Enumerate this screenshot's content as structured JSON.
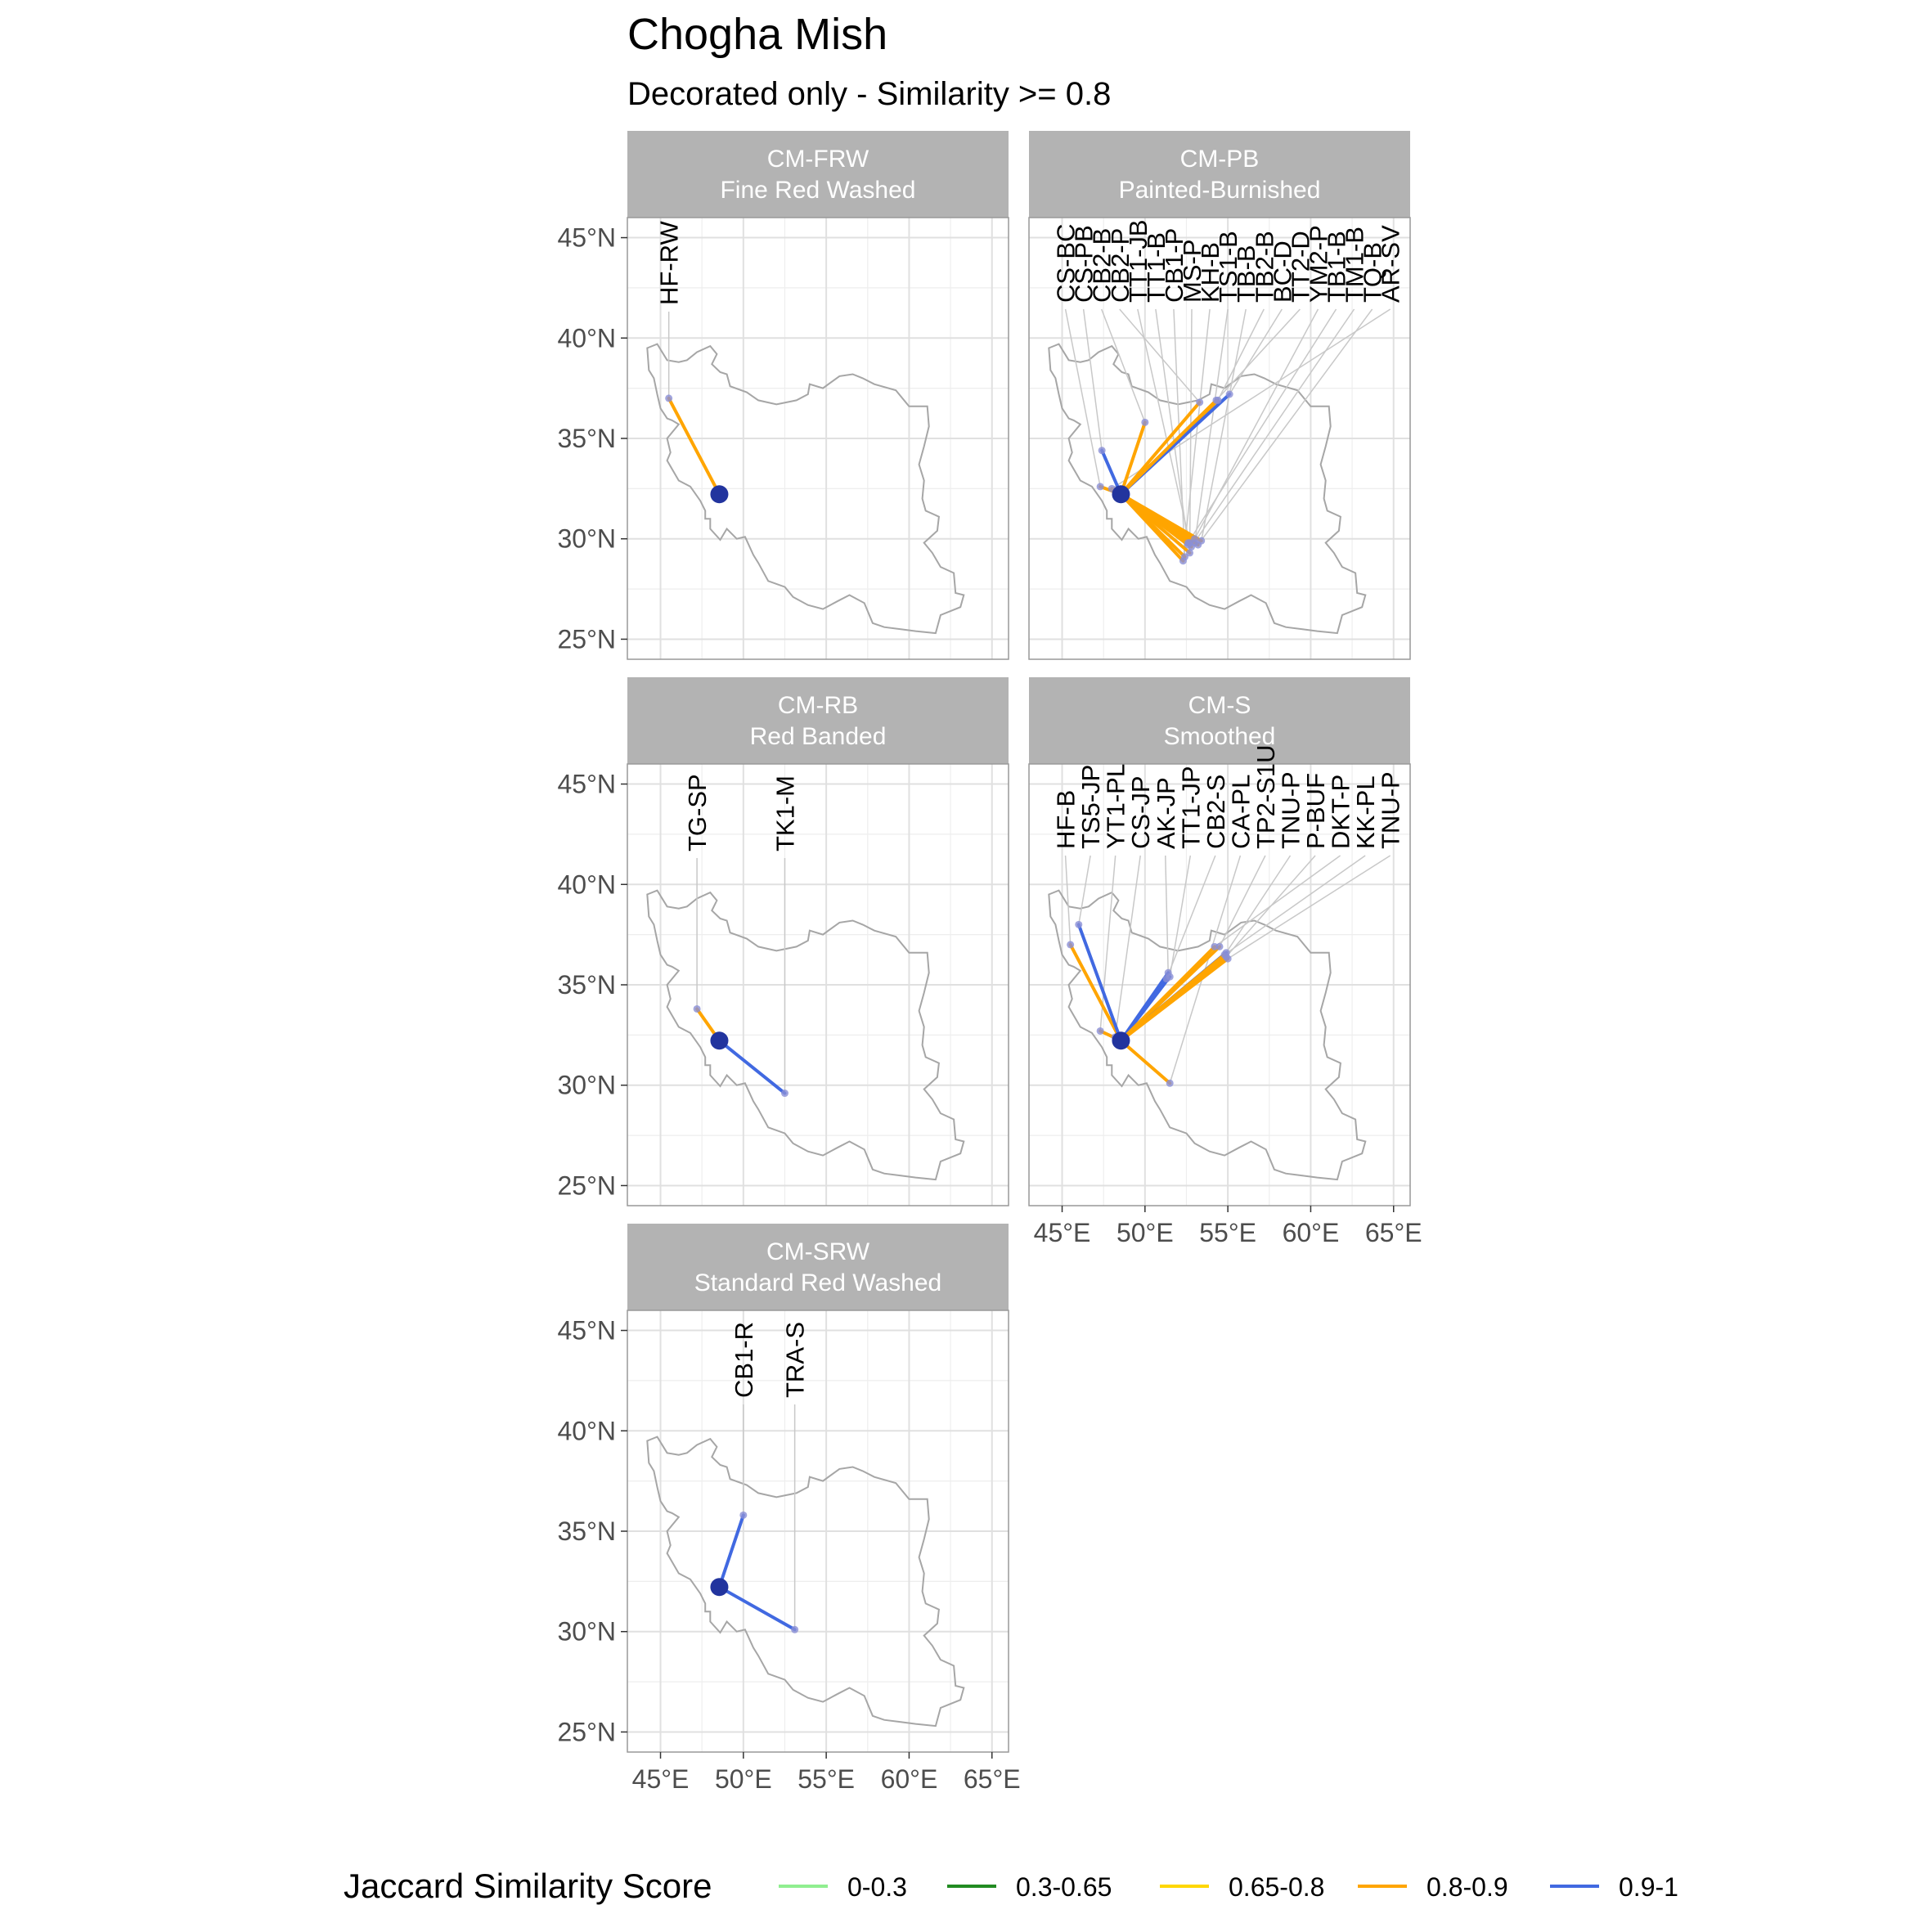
{
  "title": "Chogha Mish",
  "subtitle": "Decorated only - Similarity >= 0.8",
  "colors": {
    "0-0.3": "#90EE90",
    "0.3-0.65": "#228B22",
    "0.65-0.8": "#FFD700",
    "0.8-0.9": "#FFA500",
    "0.9-1": "#4169E1",
    "origin": "#22349E",
    "strip": "#b3b3b3",
    "grid": "#e0e0e0",
    "border": "#999999"
  },
  "legend": {
    "title": "Jaccard Similarity Score",
    "items": [
      {
        "label": "0-0.3",
        "color": "#90EE90"
      },
      {
        "label": "0.3-0.65",
        "color": "#228B22"
      },
      {
        "label": "0.65-0.8",
        "color": "#FFD700"
      },
      {
        "label": "0.8-0.9",
        "color": "#FFA500"
      },
      {
        "label": "0.9-1",
        "color": "#4169E1"
      }
    ]
  },
  "chart_data": {
    "type": "map",
    "xlim": [
      43,
      66
    ],
    "ylim": [
      24,
      46
    ],
    "x_ticks": [
      "45°E",
      "50°E",
      "55°E",
      "60°E",
      "65°E"
    ],
    "y_ticks": [
      "45°N",
      "40°N",
      "35°N",
      "30°N",
      "25°N"
    ],
    "x_tick_values": [
      45,
      50,
      55,
      60,
      65
    ],
    "y_tick_values": [
      45,
      40,
      35,
      30,
      25
    ],
    "origin": {
      "name": "Chogha Mish",
      "lon": 48.55,
      "lat": 32.22
    },
    "panels": [
      {
        "code": "CM-FRW",
        "name": "Fine Red Washed",
        "links": [
          {
            "label": "HF-RW",
            "lon": 45.5,
            "lat": 37.0,
            "bin": "0.8-0.9"
          }
        ]
      },
      {
        "code": "CM-PB",
        "name": "Painted-Burnished",
        "links": [
          {
            "label": "CS-BC",
            "lon": 47.3,
            "lat": 32.6,
            "bin": "0.8-0.9"
          },
          {
            "label": "CS-PB",
            "lon": 47.4,
            "lat": 34.4,
            "bin": "0.9-1"
          },
          {
            "label": "CB2-B",
            "lon": 50.0,
            "lat": 35.8,
            "bin": "0.8-0.9"
          },
          {
            "label": "CB2-P",
            "lon": 53.3,
            "lat": 36.8,
            "bin": "0.8-0.9"
          },
          {
            "label": "TT1-JB",
            "lon": 52.7,
            "lat": 29.8,
            "bin": "0.8-0.9"
          },
          {
            "label": "TT1-B",
            "lon": 52.6,
            "lat": 29.7,
            "bin": "0.8-0.9"
          },
          {
            "label": "CB1-P",
            "lon": 52.4,
            "lat": 29.1,
            "bin": "0.8-0.9"
          },
          {
            "label": "MS-P",
            "lon": 52.7,
            "lat": 29.3,
            "bin": "0.8-0.9"
          },
          {
            "label": "KH-B",
            "lon": 52.3,
            "lat": 28.9,
            "bin": "0.8-0.9"
          },
          {
            "label": "TS1-B",
            "lon": 53.0,
            "lat": 29.8,
            "bin": "0.8-0.9"
          },
          {
            "label": "TB-B",
            "lon": 53.4,
            "lat": 29.9,
            "bin": "0.8-0.9"
          },
          {
            "label": "TB2-B",
            "lon": 54.4,
            "lat": 36.9,
            "bin": "0.8-0.9"
          },
          {
            "label": "BC-D",
            "lon": 55.1,
            "lat": 37.2,
            "bin": "0.9-1"
          },
          {
            "label": "TT2-D",
            "lon": 54.3,
            "lat": 36.9,
            "bin": "0.8-0.9"
          },
          {
            "label": "YM2-P",
            "lon": 53.0,
            "lat": 30.0,
            "bin": "0.8-0.9"
          },
          {
            "label": "TB1-B",
            "lon": 52.6,
            "lat": 29.8,
            "bin": "0.8-0.9"
          },
          {
            "label": "TM1-B",
            "lon": 52.8,
            "lat": 29.6,
            "bin": "0.8-0.9"
          },
          {
            "label": "TQ-B",
            "lon": 53.2,
            "lat": 29.7,
            "bin": "0.8-0.9"
          },
          {
            "label": "AR-SV",
            "lon": 48.0,
            "lat": 32.5,
            "bin": "0.8-0.9"
          }
        ]
      },
      {
        "code": "CM-RB",
        "name": "Red Banded",
        "links": [
          {
            "label": "TG-SP",
            "lon": 47.2,
            "lat": 33.8,
            "bin": "0.8-0.9"
          },
          {
            "label": "TK1-M",
            "lon": 52.5,
            "lat": 29.6,
            "bin": "0.9-1"
          }
        ]
      },
      {
        "code": "CM-S",
        "name": "Smoothed",
        "links": [
          {
            "label": "HF-B",
            "lon": 45.5,
            "lat": 37.0,
            "bin": "0.8-0.9"
          },
          {
            "label": "TS5-JP",
            "lon": 46.0,
            "lat": 38.0,
            "bin": "0.9-1"
          },
          {
            "label": "YT1-PL",
            "lon": 47.3,
            "lat": 32.7,
            "bin": "0.8-0.9"
          },
          {
            "label": "CS-JP",
            "lon": 48.2,
            "lat": 32.4,
            "bin": "0.8-0.9"
          },
          {
            "label": "AK-JP",
            "lon": 51.4,
            "lat": 35.6,
            "bin": "0.9-1"
          },
          {
            "label": "TT1-JP",
            "lon": 51.5,
            "lat": 35.4,
            "bin": "0.9-1"
          },
          {
            "label": "CB2-S",
            "lon": 51.3,
            "lat": 35.3,
            "bin": "0.9-1"
          },
          {
            "label": "CA-PL",
            "lon": 51.5,
            "lat": 30.1,
            "bin": "0.8-0.9"
          },
          {
            "label": "TP2-S1U",
            "lon": 54.5,
            "lat": 36.9,
            "bin": "0.8-0.9"
          },
          {
            "label": "TNU-P",
            "lon": 54.9,
            "lat": 36.6,
            "bin": "0.9-1"
          },
          {
            "label": "P-BUF",
            "lon": 54.9,
            "lat": 36.4,
            "bin": "0.8-0.9"
          },
          {
            "label": "DKT-P",
            "lon": 54.2,
            "lat": 36.9,
            "bin": "0.8-0.9"
          },
          {
            "label": "KK-PL",
            "lon": 54.8,
            "lat": 36.5,
            "bin": "0.8-0.9"
          },
          {
            "label": "TNU-P",
            "lon": 55.0,
            "lat": 36.3,
            "bin": "0.8-0.9"
          }
        ]
      },
      {
        "code": "CM-SRW",
        "name": "Standard Red Washed",
        "links": [
          {
            "label": "CB1-R",
            "lon": 50.0,
            "lat": 35.8,
            "bin": "0.9-1"
          },
          {
            "label": "TRA-S",
            "lon": 53.1,
            "lat": 30.1,
            "bin": "0.9-1"
          }
        ]
      }
    ],
    "iran_outline": [
      [
        44.2,
        39.5
      ],
      [
        44.8,
        39.7
      ],
      [
        45.4,
        38.9
      ],
      [
        46.1,
        38.8
      ],
      [
        46.6,
        38.9
      ],
      [
        47.2,
        39.3
      ],
      [
        48.0,
        39.6
      ],
      [
        48.4,
        39.2
      ],
      [
        48.1,
        38.7
      ],
      [
        48.6,
        38.3
      ],
      [
        49.0,
        38.2
      ],
      [
        49.2,
        37.6
      ],
      [
        50.2,
        37.3
      ],
      [
        50.9,
        36.9
      ],
      [
        52.0,
        36.7
      ],
      [
        53.2,
        36.9
      ],
      [
        53.9,
        37.2
      ],
      [
        54.0,
        37.7
      ],
      [
        54.8,
        37.5
      ],
      [
        55.8,
        38.1
      ],
      [
        56.6,
        38.2
      ],
      [
        57.2,
        38.0
      ],
      [
        57.9,
        37.7
      ],
      [
        59.2,
        37.4
      ],
      [
        60.0,
        36.6
      ],
      [
        61.1,
        36.6
      ],
      [
        61.2,
        35.6
      ],
      [
        60.9,
        34.6
      ],
      [
        60.6,
        33.7
      ],
      [
        60.9,
        32.9
      ],
      [
        60.8,
        32.0
      ],
      [
        61.0,
        31.4
      ],
      [
        61.8,
        31.1
      ],
      [
        61.7,
        30.4
      ],
      [
        60.9,
        29.8
      ],
      [
        61.4,
        29.3
      ],
      [
        61.9,
        28.6
      ],
      [
        62.7,
        28.3
      ],
      [
        62.8,
        27.3
      ],
      [
        63.3,
        27.2
      ],
      [
        63.1,
        26.6
      ],
      [
        61.9,
        26.2
      ],
      [
        61.6,
        25.3
      ],
      [
        60.4,
        25.4
      ],
      [
        59.5,
        25.5
      ],
      [
        58.5,
        25.6
      ],
      [
        57.8,
        25.8
      ],
      [
        57.3,
        26.8
      ],
      [
        56.4,
        27.2
      ],
      [
        55.7,
        26.9
      ],
      [
        54.8,
        26.5
      ],
      [
        53.9,
        26.7
      ],
      [
        53.0,
        27.1
      ],
      [
        52.5,
        27.6
      ],
      [
        51.5,
        27.9
      ],
      [
        50.9,
        28.8
      ],
      [
        50.6,
        29.2
      ],
      [
        50.1,
        30.1
      ],
      [
        49.6,
        30.0
      ],
      [
        49.0,
        30.5
      ],
      [
        48.6,
        29.95
      ],
      [
        48.0,
        30.5
      ],
      [
        48.0,
        31.0
      ],
      [
        47.7,
        31.0
      ],
      [
        47.7,
        31.4
      ],
      [
        47.4,
        31.9
      ],
      [
        46.8,
        32.6
      ],
      [
        46.1,
        32.9
      ],
      [
        45.4,
        33.9
      ],
      [
        45.6,
        34.3
      ],
      [
        45.4,
        35.0
      ],
      [
        46.1,
        35.7
      ],
      [
        45.7,
        35.9
      ],
      [
        45.4,
        36.0
      ],
      [
        45.0,
        36.5
      ],
      [
        44.8,
        37.2
      ],
      [
        44.6,
        38.0
      ],
      [
        44.3,
        38.4
      ],
      [
        44.2,
        39.5
      ]
    ]
  }
}
